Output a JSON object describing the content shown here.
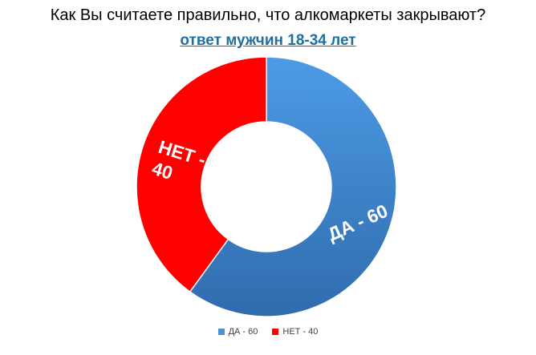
{
  "title": "Как Вы считаете правильно, что алкомаркеты закрывают?",
  "subtitle": "ответ мужчин 18-34 лет",
  "colors": {
    "yes": "#4a90d9",
    "no": "#ff0000"
  },
  "chart_data": {
    "type": "pie",
    "title": "Как Вы считаете правильно, что алкомаркеты закрывают?",
    "subtitle": "ответ мужчин 18-34 лет",
    "donut": true,
    "categories": [
      "ДА",
      "НЕТ"
    ],
    "values": [
      60,
      40
    ],
    "data_labels": [
      "ДА - 60",
      "НЕТ - 40"
    ],
    "legend": {
      "position": "bottom",
      "entries": [
        "ДА - 60",
        "НЕТ - 40"
      ]
    }
  }
}
